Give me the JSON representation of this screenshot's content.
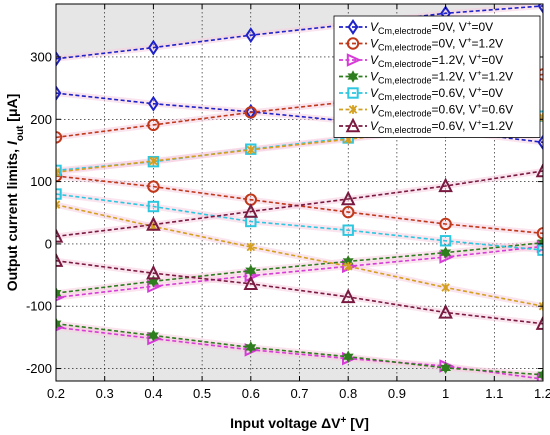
{
  "chart_data": {
    "type": "line",
    "xlabel_main": "Input voltage  ΔV",
    "xlabel_sup": "+",
    "xlabel_unit": " [V]",
    "ylabel_main": "Output current limits, ",
    "ylabel_var": "I",
    "ylabel_sub": "out",
    "ylabel_unit": "  [μA]",
    "xlim": [
      0.2,
      1.2
    ],
    "ylim": [
      -220,
      385
    ],
    "xticks": [
      "0.2",
      "0.3",
      "0.4",
      "0.5",
      "0.6",
      "0.7",
      "0.8",
      "0.9",
      "1",
      "1.1",
      "1.2"
    ],
    "yticks": [
      "-200",
      "-100",
      "0",
      "100",
      "200",
      "300"
    ],
    "grid": true,
    "legend_position": "top-right",
    "shaded_bands": {
      "color": "#e6e6e6",
      "upper_region": {
        "x": [
          0.2,
          0.4,
          0.6,
          0.8,
          1.0,
          1.2
        ],
        "y": [
          297,
          315,
          335,
          352,
          370,
          385
        ]
      },
      "lower_region": {
        "x": [
          0.2,
          0.4,
          0.6,
          0.8,
          1.0,
          1.2
        ],
        "y": [
          -128,
          -148,
          -167,
          -182,
          -197,
          -212
        ]
      }
    },
    "x": [
      0.2,
      0.4,
      0.6,
      0.8,
      1.0,
      1.2
    ],
    "series": [
      {
        "legend": {
          "v": "V",
          "sub": "Cm,electrode",
          "rest": "=0V,  V",
          "sup": "+",
          "end": "=0V"
        },
        "color": "#1f22c8",
        "marker": "diamond",
        "upper": [
          297,
          315,
          335,
          352,
          370,
          382
        ],
        "lower": [
          242,
          225,
          212,
          197,
          182,
          163
        ]
      },
      {
        "legend": {
          "v": "V",
          "sub": "Cm,electrode",
          "rest": "=0V,  V",
          "sup": "+",
          "end": "=1.2V"
        },
        "color": "#c0391b",
        "marker": "circle",
        "upper": [
          171,
          191,
          211,
          228,
          248,
          272
        ],
        "lower": [
          109,
          92,
          71,
          51,
          32,
          17
        ]
      },
      {
        "legend": {
          "v": "V",
          "sub": "Cm,electrode",
          "rest": "=1.2V,  V",
          "sup": "+",
          "end": "=0V"
        },
        "color": "#d63cd6",
        "marker": "triangle-right",
        "upper": [
          -86,
          -68,
          -51,
          -36,
          -21,
          -4
        ],
        "lower": [
          -134,
          -152,
          -170,
          -184,
          -196,
          -217
        ]
      },
      {
        "legend": {
          "v": "V",
          "sub": "Cm,electrode",
          "rest": "=1.2V,  V",
          "sup": "+",
          "end": "=1.2V"
        },
        "color": "#2e7d1e",
        "marker": "hexagram",
        "upper": [
          -79,
          -60,
          -43,
          -28,
          -14,
          2
        ],
        "lower": [
          -128,
          -147,
          -166,
          -181,
          -199,
          -210
        ]
      },
      {
        "legend": {
          "v": "V",
          "sub": "Cm,electrode",
          "rest": "=0.6V,  V",
          "sup": "+",
          "end": "=0V"
        },
        "color": "#2ec7e0",
        "marker": "square",
        "upper": [
          118,
          132,
          152,
          170,
          188,
          205
        ],
        "lower": [
          80,
          60,
          36,
          22,
          5,
          -10
        ]
      },
      {
        "legend": {
          "v": "V",
          "sub": "Cm,electrode",
          "rest": "=0.6V,  V",
          "sup": "+",
          "end": "=0.6V"
        },
        "color": "#d4a020",
        "marker": "x-star",
        "upper": [
          115,
          133,
          151,
          168,
          186,
          203
        ],
        "lower": [
          63,
          28,
          -5,
          -36,
          -70,
          -100
        ]
      },
      {
        "legend": {
          "v": "V",
          "sub": "Cm,electrode",
          "rest": "=0.6V,  V",
          "sup": "+",
          "end": "=1.2V"
        },
        "color": "#7a1a40",
        "marker": "triangle-up",
        "upper": [
          12,
          31,
          52,
          72,
          93,
          117
        ],
        "lower": [
          -27,
          -47,
          -64,
          -85,
          -110,
          -128
        ]
      }
    ]
  }
}
